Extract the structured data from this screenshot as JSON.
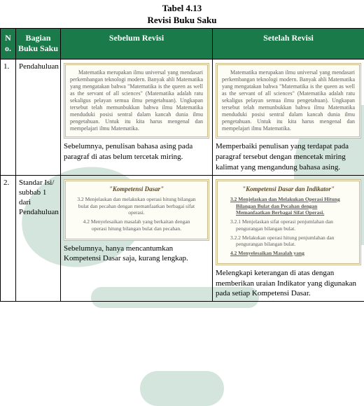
{
  "title_line1": "Tabel 4.13",
  "title_line2": "Revisi Buku Saku",
  "headers": {
    "no": "N o.",
    "bagian": "Bagian Buku Saku",
    "sebelum": "Sebelum Revisi",
    "setelah": "Setelah Revisi"
  },
  "row1": {
    "no": "1.",
    "bagian": "Pendahuluan",
    "card_sebelum": "Matematika merupakan ilmu universal yang mendasari perkembangan teknologi modern. Banyak ahli Matematika yang mengatakan bahwa \"Matematika is the queen as well as the servant of all sciences\" (Matematika adalah ratu sekaligus pelayan semua ilmu pengetahuan). Ungkapan tersebut telah memunbukkan bahwa ilmu Matematika menduduki posisi sentral dalam kancah dunia ilmu pengetahuan. Untuk itu kita harus mengenal dan mempelajari ilmu Matematika.",
    "caption_sebelum": "Sebelumnya, penulisan bahasa asing pada paragraf di atas belum tercetak miring.",
    "card_setelah": "Matematika merupakan ilmu universal yang mendasari perkembangan teknologi modern. Banyak ahli Matematika yang mengatakan bahwa \"Matematika is the queen as well as the servant of all sciences\" (Matematika adalah ratu sekaligus pelayan semua ilmu pengetahuan). Ungkapan tersebut telah memunbukkan bahwa ilmu Matematika menduduki posisi sentral dalam kancah dunia ilmu pengetahuan. Untuk itu kita harus mengenal dan mempelajari ilmu Matematika.",
    "caption_setelah": "Memperbaiki penulisan yang terdapat pada paragraf tersebut dengan mencetak miring kalimat yang mengandung bahasa asing."
  },
  "row2": {
    "no": "2.",
    "bagian": "Standar Isi/ subbab 1 dari Pendahuluan",
    "card_sebelum_title": "\"Kompetensi Dasar\"",
    "card_sebelum_kd1": "3.2 Menjelaskan dan melakukan operasi hitung bilangan bulat dan pecahan dengan memanfaatkan berbagai sifat operasi.",
    "card_sebelum_kd2": "4.2 Menyelesaikan masalah yang berkaitan dengan operasi hitung bilangan bulat dan pecahan.",
    "caption_sebelum": "Sebelumnya, hanya mencantumkan Kompetensi Dasar saja, kurang lengkap.",
    "card_setelah_title": "\"Kompetensi Dasar dan Indikator\"",
    "card_setelah_kd1": "3.2 Menjelaskan dan Melakukan Operasi Hitung Bilangan Bulat dan Pecahan dengan Memanfaatkan Berbagai Sifat Operasi.",
    "card_setelah_i1": "3.2.1 Menjelaskan sifat operasi penjumlahan dan pengurangan bilangan bulat.",
    "card_setelah_i2": "3.2.2 Melakukan operasi hitung penjumlahan dan pengurangan bilangan bulat.",
    "card_setelah_kd2": "4.2 Menyelesaikan Masalah yang",
    "caption_setelah": "Melengkapi keterangan di atas dengan memberikan uraian Indikator yang digunakan pada setiap Kompetensi Dasar."
  },
  "colors": {
    "header_bg": "#1a7a4a",
    "header_fg": "#ffffff",
    "card_bg": "#fdfcf5",
    "card_border": "#c9b98a",
    "deco": "#b8d4c8"
  }
}
